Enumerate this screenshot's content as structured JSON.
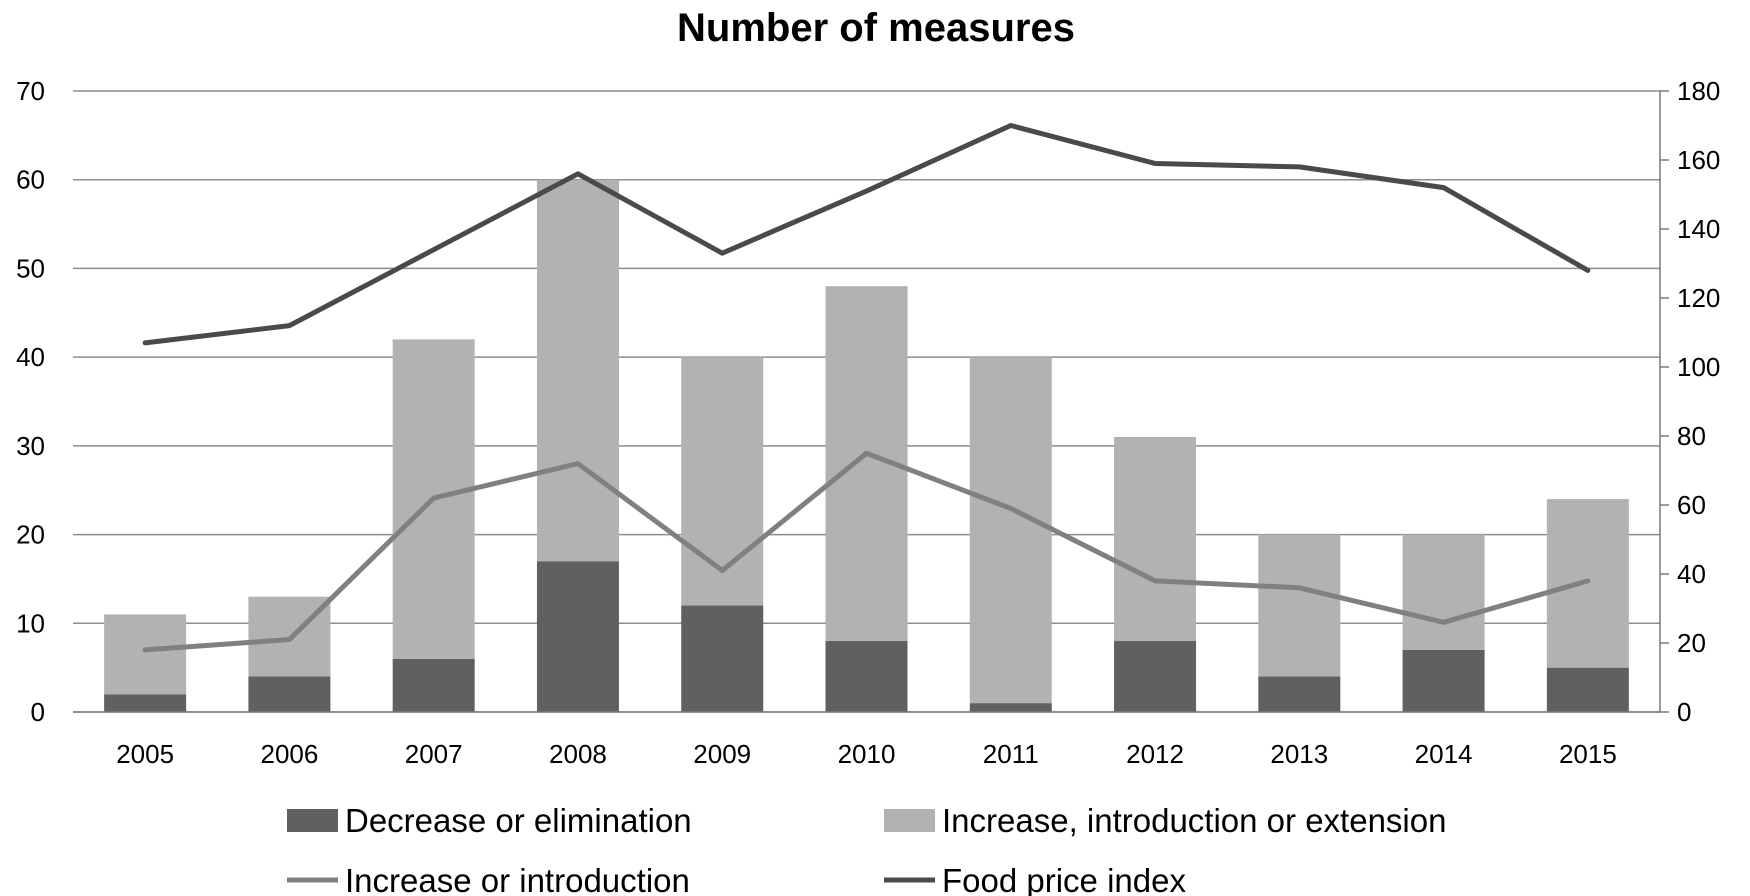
{
  "chart_data": {
    "type": "bar",
    "title": "Number of measures",
    "categories": [
      "2005",
      "2006",
      "2007",
      "2008",
      "2009",
      "2010",
      "2011",
      "2012",
      "2013",
      "2014",
      "2015"
    ],
    "stacked": true,
    "series": [
      {
        "name": "Decrease or elimination",
        "type": "bar",
        "axis": "left",
        "color": "#606060",
        "values": [
          2,
          4,
          6,
          17,
          12,
          8,
          1,
          8,
          4,
          7,
          5
        ]
      },
      {
        "name": "Increase, introduction or extension",
        "type": "bar",
        "axis": "left",
        "color": "#b2b2b2",
        "values": [
          9,
          9,
          36,
          43,
          28,
          40,
          39,
          23,
          16,
          13,
          19
        ]
      },
      {
        "name": "Increase or introduction",
        "type": "line",
        "axis": "right",
        "color": "#808080",
        "values": [
          18,
          21,
          62,
          72,
          41,
          75,
          59,
          38,
          36,
          26,
          38
        ]
      },
      {
        "name": "Food price index",
        "type": "line",
        "axis": "right",
        "color": "#4a4a4a",
        "values": [
          107,
          112,
          134,
          156,
          133,
          151,
          170,
          159,
          158,
          152,
          128
        ]
      }
    ],
    "y_left": {
      "min": 0,
      "max": 70,
      "ticks": [
        "0",
        "10",
        "20",
        "30",
        "40",
        "50",
        "60",
        "70"
      ]
    },
    "y_right": {
      "min": 0,
      "max": 180,
      "ticks": [
        "0",
        "20",
        "40",
        "60",
        "80",
        "100",
        "120",
        "140",
        "160",
        "180"
      ]
    },
    "xlabel": "",
    "ylabel": "",
    "grid": true,
    "legend_position": "bottom"
  }
}
